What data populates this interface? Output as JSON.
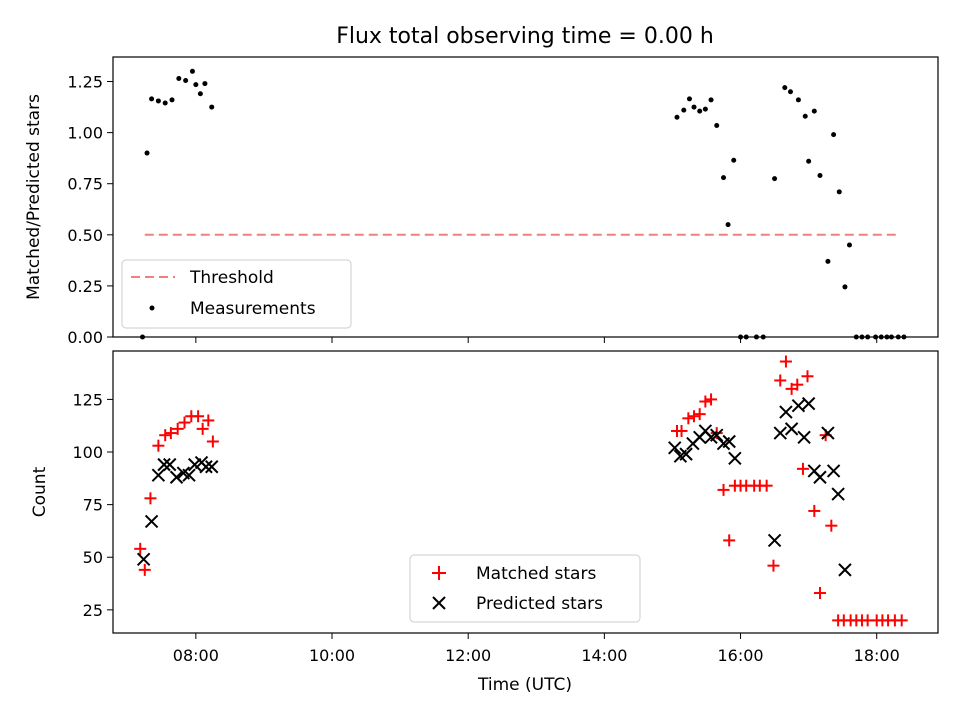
{
  "chart_data": [
    {
      "type": "scatter",
      "title": "Flux total observing time = 0.00 h",
      "xlabel": "",
      "ylabel": "Matched/Predicted stars",
      "xlim": [
        "06:47",
        "18:54"
      ],
      "ylim": [
        0,
        1.37
      ],
      "yticks": [
        "0.00",
        "0.25",
        "0.50",
        "0.75",
        "1.00",
        "1.25"
      ],
      "xticks": [
        "08:00",
        "10:00",
        "12:00",
        "14:00",
        "16:00",
        "18:00"
      ],
      "show_xtick_labels": false,
      "legend_position": "lower-left",
      "threshold": {
        "name": "Threshold",
        "value": 0.5,
        "x_start": "07:15",
        "x_end": "18:20",
        "color": "#f08080",
        "style": "dashed"
      },
      "series": [
        {
          "name": "Measurements",
          "marker": "dot",
          "color": "#000000",
          "points": [
            [
              "07:13",
              0.0
            ],
            [
              "07:17",
              0.9
            ],
            [
              "07:21",
              1.165
            ],
            [
              "07:27",
              1.155
            ],
            [
              "07:33",
              1.145
            ],
            [
              "07:39",
              1.16
            ],
            [
              "07:45",
              1.265
            ],
            [
              "07:51",
              1.255
            ],
            [
              "07:57",
              1.3
            ],
            [
              "08:00",
              1.235
            ],
            [
              "08:04",
              1.19
            ],
            [
              "08:08",
              1.24
            ],
            [
              "08:14",
              1.125
            ],
            [
              "15:04",
              1.075
            ],
            [
              "15:10",
              1.11
            ],
            [
              "15:15",
              1.165
            ],
            [
              "15:19",
              1.125
            ],
            [
              "15:24",
              1.105
            ],
            [
              "15:29",
              1.115
            ],
            [
              "15:34",
              1.16
            ],
            [
              "15:39",
              1.035
            ],
            [
              "15:45",
              0.78
            ],
            [
              "15:49",
              0.55
            ],
            [
              "15:54",
              0.865
            ],
            [
              "16:00",
              0.0
            ],
            [
              "16:05",
              0.0
            ],
            [
              "16:14",
              0.0
            ],
            [
              "16:20",
              0.0
            ],
            [
              "16:30",
              0.775
            ],
            [
              "16:39",
              1.22
            ],
            [
              "16:44",
              1.2
            ],
            [
              "16:51",
              1.16
            ],
            [
              "16:57",
              1.08
            ],
            [
              "17:00",
              0.86
            ],
            [
              "17:05",
              1.105
            ],
            [
              "17:10",
              0.79
            ],
            [
              "17:17",
              0.37
            ],
            [
              "17:22",
              0.99
            ],
            [
              "17:27",
              0.71
            ],
            [
              "17:32",
              0.245
            ],
            [
              "17:36",
              0.45
            ],
            [
              "17:42",
              0.0
            ],
            [
              "17:47",
              0.0
            ],
            [
              "17:52",
              0.0
            ],
            [
              "17:59",
              0.0
            ],
            [
              "18:04",
              0.0
            ],
            [
              "18:09",
              0.0
            ],
            [
              "18:13",
              0.0
            ],
            [
              "18:19",
              0.0
            ],
            [
              "18:24",
              0.0
            ]
          ]
        }
      ]
    },
    {
      "type": "scatter",
      "title": "",
      "xlabel": "Time (UTC)",
      "ylabel": "Count",
      "xlim": [
        "06:47",
        "18:54"
      ],
      "ylim": [
        14,
        148
      ],
      "yticks": [
        "25",
        "50",
        "75",
        "100",
        "125"
      ],
      "xticks": [
        "08:00",
        "10:00",
        "12:00",
        "14:00",
        "16:00",
        "18:00"
      ],
      "show_xtick_labels": true,
      "legend_position": "lower-center",
      "series": [
        {
          "name": "Matched stars",
          "marker": "plus",
          "color": "#ff0000",
          "points": [
            [
              "07:11",
              54
            ],
            [
              "07:15",
              44
            ],
            [
              "07:20",
              78
            ],
            [
              "07:27",
              103
            ],
            [
              "07:33",
              108
            ],
            [
              "07:38",
              109
            ],
            [
              "07:44",
              111
            ],
            [
              "07:50",
              114
            ],
            [
              "07:56",
              117
            ],
            [
              "08:02",
              117
            ],
            [
              "08:06",
              111
            ],
            [
              "08:11",
              115
            ],
            [
              "08:15",
              105
            ],
            [
              "15:04",
              110
            ],
            [
              "15:08",
              110
            ],
            [
              "15:14",
              116
            ],
            [
              "15:19",
              117
            ],
            [
              "15:24",
              118
            ],
            [
              "15:29",
              124
            ],
            [
              "15:34",
              125
            ],
            [
              "15:39",
              109
            ],
            [
              "15:45",
              82
            ],
            [
              "15:50",
              58
            ],
            [
              "15:55",
              84
            ],
            [
              "16:00",
              84
            ],
            [
              "16:05",
              84
            ],
            [
              "16:12",
              84
            ],
            [
              "16:17",
              84
            ],
            [
              "16:23",
              84
            ],
            [
              "16:29",
              46
            ],
            [
              "16:35",
              134
            ],
            [
              "16:40",
              143
            ],
            [
              "16:45",
              130
            ],
            [
              "16:50",
              132
            ],
            [
              "16:55",
              92
            ],
            [
              "16:59",
              136
            ],
            [
              "17:05",
              72
            ],
            [
              "17:10",
              33
            ],
            [
              "17:15",
              108
            ],
            [
              "17:20",
              65
            ],
            [
              "17:26",
              20
            ],
            [
              "17:31",
              20
            ],
            [
              "17:37",
              20
            ],
            [
              "17:42",
              20
            ],
            [
              "17:47",
              20
            ],
            [
              "17:52",
              20
            ],
            [
              "18:00",
              20
            ],
            [
              "18:05",
              20
            ],
            [
              "18:10",
              20
            ],
            [
              "18:16",
              20
            ],
            [
              "18:22",
              20
            ]
          ]
        },
        {
          "name": "Predicted stars",
          "marker": "x",
          "color": "#000000",
          "points": [
            [
              "07:14",
              49
            ],
            [
              "07:21",
              67
            ],
            [
              "07:27",
              89
            ],
            [
              "07:32",
              94
            ],
            [
              "07:37",
              94
            ],
            [
              "07:43",
              88
            ],
            [
              "07:49",
              90
            ],
            [
              "07:54",
              89
            ],
            [
              "07:59",
              94
            ],
            [
              "08:05",
              95
            ],
            [
              "08:09",
              93
            ],
            [
              "08:14",
              93
            ],
            [
              "15:02",
              102
            ],
            [
              "15:07",
              98
            ],
            [
              "15:12",
              99
            ],
            [
              "15:18",
              104
            ],
            [
              "15:24",
              107
            ],
            [
              "15:29",
              110
            ],
            [
              "15:34",
              107
            ],
            [
              "15:39",
              108
            ],
            [
              "15:45",
              104
            ],
            [
              "15:50",
              105
            ],
            [
              "15:55",
              97
            ],
            [
              "16:30",
              58
            ],
            [
              "16:35",
              109
            ],
            [
              "16:40",
              119
            ],
            [
              "16:45",
              111
            ],
            [
              "16:51",
              122
            ],
            [
              "16:56",
              107
            ],
            [
              "17:00",
              123
            ],
            [
              "17:05",
              91
            ],
            [
              "17:10",
              88
            ],
            [
              "17:17",
              109
            ],
            [
              "17:22",
              91
            ],
            [
              "17:26",
              80
            ],
            [
              "17:32",
              44
            ]
          ]
        }
      ]
    }
  ]
}
